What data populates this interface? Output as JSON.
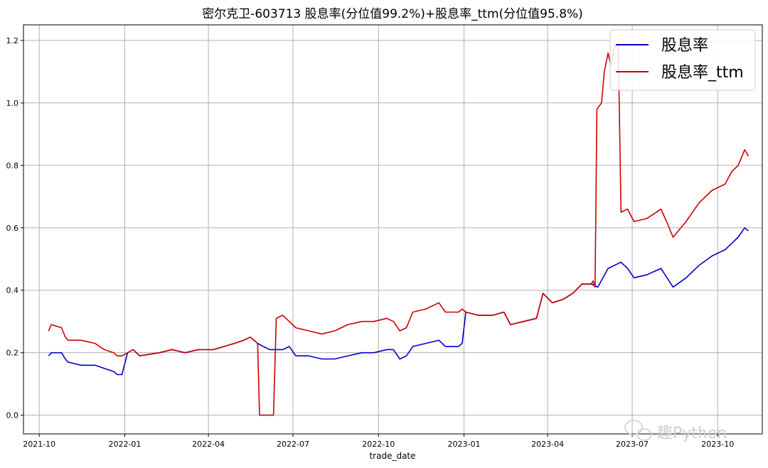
{
  "chart_data": {
    "type": "line",
    "title": "密尔克卫-603713 股息率(分位值99.2%)+股息率_ttm(分位值95.8%)",
    "xlabel": "trade_date",
    "ylabel": "",
    "x_ticks": [
      "2021-10",
      "2022-01",
      "2022-04",
      "2022-07",
      "2022-10",
      "2023-01",
      "2023-04",
      "2023-07",
      "2023-10"
    ],
    "y_ticks": [
      "0.0",
      "0.2",
      "0.4",
      "0.6",
      "0.8",
      "1.0",
      "1.2"
    ],
    "ylim": [
      -0.06,
      1.25
    ],
    "xlim": [
      "2021-09-14",
      "2023-11-18"
    ],
    "grid": true,
    "legend_position": "top-right",
    "series": [
      {
        "name": "股息率",
        "color": "#0000cc",
        "points": [
          [
            "2021-10-11",
            0.19
          ],
          [
            "2021-10-14",
            0.2
          ],
          [
            "2021-10-25",
            0.2
          ],
          [
            "2021-10-29",
            0.18
          ],
          [
            "2021-11-01",
            0.17
          ],
          [
            "2021-11-15",
            0.16
          ],
          [
            "2021-11-30",
            0.16
          ],
          [
            "2021-12-10",
            0.15
          ],
          [
            "2021-12-20",
            0.14
          ],
          [
            "2021-12-24",
            0.13
          ],
          [
            "2021-12-29",
            0.13
          ],
          [
            "2022-01-04",
            0.2
          ],
          [
            "2022-01-10",
            0.21
          ],
          [
            "2022-01-17",
            0.19
          ],
          [
            "2022-02-07",
            0.2
          ],
          [
            "2022-02-21",
            0.21
          ],
          [
            "2022-03-07",
            0.2
          ],
          [
            "2022-03-21",
            0.21
          ],
          [
            "2022-04-06",
            0.21
          ],
          [
            "2022-04-18",
            0.22
          ],
          [
            "2022-04-29",
            0.23
          ],
          [
            "2022-05-09",
            0.24
          ],
          [
            "2022-05-16",
            0.25
          ],
          [
            "2022-05-24",
            0.23
          ],
          [
            "2022-05-30",
            0.22
          ],
          [
            "2022-06-06",
            0.21
          ],
          [
            "2022-06-13",
            0.21
          ],
          [
            "2022-06-20",
            0.21
          ],
          [
            "2022-06-27",
            0.22
          ],
          [
            "2022-07-04",
            0.19
          ],
          [
            "2022-07-18",
            0.19
          ],
          [
            "2022-08-01",
            0.18
          ],
          [
            "2022-08-15",
            0.18
          ],
          [
            "2022-08-29",
            0.19
          ],
          [
            "2022-09-13",
            0.2
          ],
          [
            "2022-09-26",
            0.2
          ],
          [
            "2022-10-10",
            0.21
          ],
          [
            "2022-10-17",
            0.21
          ],
          [
            "2022-10-24",
            0.18
          ],
          [
            "2022-10-31",
            0.19
          ],
          [
            "2022-11-07",
            0.22
          ],
          [
            "2022-11-21",
            0.23
          ],
          [
            "2022-12-05",
            0.24
          ],
          [
            "2022-12-12",
            0.22
          ],
          [
            "2022-12-26",
            0.22
          ],
          [
            "2022-12-30",
            0.23
          ],
          [
            "2023-01-03",
            0.33
          ],
          [
            "2023-01-16",
            0.32
          ],
          [
            "2023-02-01",
            0.32
          ],
          [
            "2023-02-13",
            0.33
          ],
          [
            "2023-02-20",
            0.29
          ],
          [
            "2023-03-06",
            0.3
          ],
          [
            "2023-03-20",
            0.31
          ],
          [
            "2023-03-27",
            0.39
          ],
          [
            "2023-04-06",
            0.36
          ],
          [
            "2023-04-17",
            0.37
          ],
          [
            "2023-04-28",
            0.39
          ],
          [
            "2023-05-08",
            0.42
          ],
          [
            "2023-05-18",
            0.42
          ],
          [
            "2023-05-25",
            0.41
          ],
          [
            "2023-06-05",
            0.47
          ],
          [
            "2023-06-19",
            0.49
          ],
          [
            "2023-06-26",
            0.47
          ],
          [
            "2023-07-03",
            0.44
          ],
          [
            "2023-07-17",
            0.45
          ],
          [
            "2023-08-01",
            0.47
          ],
          [
            "2023-08-14",
            0.41
          ],
          [
            "2023-08-28",
            0.44
          ],
          [
            "2023-09-11",
            0.48
          ],
          [
            "2023-09-25",
            0.51
          ],
          [
            "2023-10-09",
            0.53
          ],
          [
            "2023-10-16",
            0.55
          ],
          [
            "2023-10-23",
            0.57
          ],
          [
            "2023-10-30",
            0.6
          ],
          [
            "2023-11-03",
            0.59
          ]
        ]
      },
      {
        "name": "股息率_ttm",
        "color": "#cc0000",
        "points": [
          [
            "2021-10-11",
            0.27
          ],
          [
            "2021-10-14",
            0.29
          ],
          [
            "2021-10-25",
            0.28
          ],
          [
            "2021-10-29",
            0.25
          ],
          [
            "2021-11-01",
            0.24
          ],
          [
            "2021-11-15",
            0.24
          ],
          [
            "2021-11-30",
            0.23
          ],
          [
            "2021-12-10",
            0.21
          ],
          [
            "2021-12-20",
            0.2
          ],
          [
            "2021-12-24",
            0.19
          ],
          [
            "2021-12-29",
            0.19
          ],
          [
            "2022-01-04",
            0.2
          ],
          [
            "2022-01-10",
            0.21
          ],
          [
            "2022-01-17",
            0.19
          ],
          [
            "2022-02-07",
            0.2
          ],
          [
            "2022-02-21",
            0.21
          ],
          [
            "2022-03-07",
            0.2
          ],
          [
            "2022-03-21",
            0.21
          ],
          [
            "2022-04-06",
            0.21
          ],
          [
            "2022-04-18",
            0.22
          ],
          [
            "2022-04-29",
            0.23
          ],
          [
            "2022-05-09",
            0.24
          ],
          [
            "2022-05-16",
            0.25
          ],
          [
            "2022-05-24",
            0.23
          ],
          [
            "2022-05-26",
            0.0
          ],
          [
            "2022-06-10",
            0.0
          ],
          [
            "2022-06-13",
            0.31
          ],
          [
            "2022-06-20",
            0.32
          ],
          [
            "2022-06-27",
            0.3
          ],
          [
            "2022-07-04",
            0.28
          ],
          [
            "2022-07-18",
            0.27
          ],
          [
            "2022-08-01",
            0.26
          ],
          [
            "2022-08-15",
            0.27
          ],
          [
            "2022-08-29",
            0.29
          ],
          [
            "2022-09-13",
            0.3
          ],
          [
            "2022-09-26",
            0.3
          ],
          [
            "2022-10-10",
            0.31
          ],
          [
            "2022-10-17",
            0.3
          ],
          [
            "2022-10-24",
            0.27
          ],
          [
            "2022-10-31",
            0.28
          ],
          [
            "2022-11-07",
            0.33
          ],
          [
            "2022-11-21",
            0.34
          ],
          [
            "2022-12-05",
            0.36
          ],
          [
            "2022-12-12",
            0.33
          ],
          [
            "2022-12-26",
            0.33
          ],
          [
            "2022-12-30",
            0.34
          ],
          [
            "2023-01-03",
            0.33
          ],
          [
            "2023-01-16",
            0.32
          ],
          [
            "2023-02-01",
            0.32
          ],
          [
            "2023-02-13",
            0.33
          ],
          [
            "2023-02-20",
            0.29
          ],
          [
            "2023-03-06",
            0.3
          ],
          [
            "2023-03-20",
            0.31
          ],
          [
            "2023-03-27",
            0.39
          ],
          [
            "2023-04-06",
            0.36
          ],
          [
            "2023-04-17",
            0.37
          ],
          [
            "2023-04-28",
            0.39
          ],
          [
            "2023-05-08",
            0.42
          ],
          [
            "2023-05-18",
            0.42
          ],
          [
            "2023-05-20",
            0.43
          ],
          [
            "2023-05-22",
            0.41
          ],
          [
            "2023-05-24",
            0.98
          ],
          [
            "2023-05-29",
            1.0
          ],
          [
            "2023-06-01",
            1.1
          ],
          [
            "2023-06-05",
            1.16
          ],
          [
            "2023-06-08",
            1.12
          ],
          [
            "2023-06-12",
            1.18
          ],
          [
            "2023-06-16",
            1.19
          ],
          [
            "2023-06-19",
            0.65
          ],
          [
            "2023-06-26",
            0.66
          ],
          [
            "2023-07-03",
            0.62
          ],
          [
            "2023-07-17",
            0.63
          ],
          [
            "2023-08-01",
            0.66
          ],
          [
            "2023-08-07",
            0.62
          ],
          [
            "2023-08-14",
            0.57
          ],
          [
            "2023-08-28",
            0.62
          ],
          [
            "2023-09-11",
            0.68
          ],
          [
            "2023-09-25",
            0.72
          ],
          [
            "2023-10-09",
            0.74
          ],
          [
            "2023-10-16",
            0.78
          ],
          [
            "2023-10-23",
            0.8
          ],
          [
            "2023-10-30",
            0.85
          ],
          [
            "2023-11-03",
            0.83
          ]
        ]
      }
    ]
  },
  "watermark": {
    "text": "趣Python"
  }
}
